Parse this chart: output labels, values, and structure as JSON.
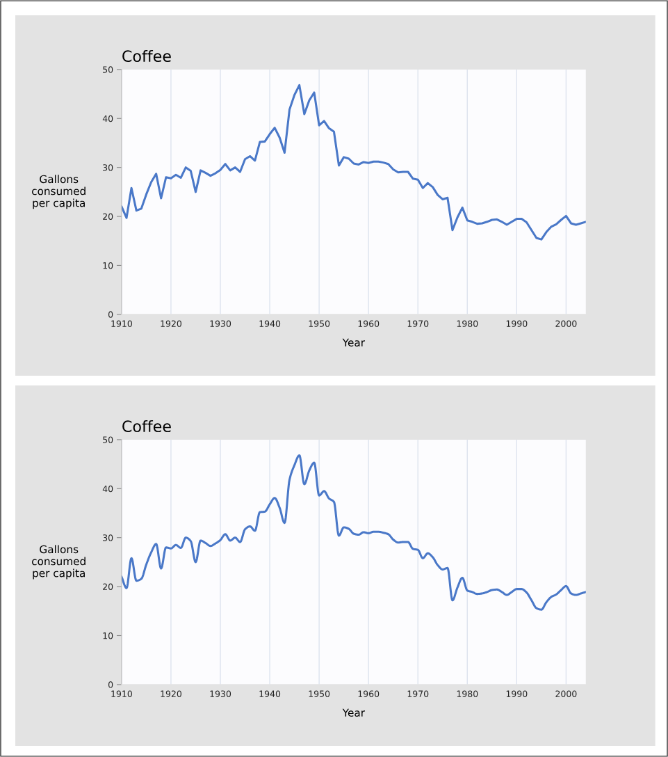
{
  "chart_data": [
    {
      "type": "line",
      "title": "Coffee",
      "xlabel": "Year",
      "ylabel": "Gallons\nconsumed\nper capita",
      "x": [
        1910,
        1911,
        1912,
        1913,
        1914,
        1915,
        1916,
        1917,
        1918,
        1919,
        1920,
        1921,
        1922,
        1923,
        1924,
        1925,
        1926,
        1927,
        1928,
        1929,
        1930,
        1931,
        1932,
        1933,
        1934,
        1935,
        1936,
        1937,
        1938,
        1939,
        1940,
        1941,
        1942,
        1943,
        1944,
        1945,
        1946,
        1947,
        1948,
        1949,
        1950,
        1951,
        1952,
        1953,
        1954,
        1955,
        1956,
        1957,
        1958,
        1959,
        1960,
        1961,
        1962,
        1963,
        1964,
        1965,
        1966,
        1967,
        1968,
        1969,
        1970,
        1971,
        1972,
        1973,
        1974,
        1975,
        1976,
        1977,
        1978,
        1979,
        1980,
        1981,
        1982,
        1983,
        1984,
        1985,
        1986,
        1987,
        1988,
        1989,
        1990,
        1991,
        1992,
        1993,
        1994,
        1995,
        1996,
        1997,
        1998,
        1999,
        2000,
        2001,
        2002,
        2003,
        2004
      ],
      "series": [
        {
          "color": "#4a78c8",
          "values": [
            22,
            19.7,
            25.8,
            21.2,
            21.6,
            24.5,
            27,
            28.7,
            23.7,
            28,
            27.8,
            28.5,
            27.9,
            30,
            29.3,
            25,
            29.4,
            28.9,
            28.3,
            28.8,
            29.5,
            30.7,
            29.4,
            30,
            29.1,
            31.7,
            32.3,
            31.4,
            35.2,
            35.3,
            36.8,
            38.1,
            36.1,
            33,
            41.8,
            44.8,
            46.8,
            40.9,
            43.7,
            45.3,
            38.6,
            39.5,
            38,
            37.3,
            30.4,
            32.1,
            31.8,
            30.8,
            30.6,
            31.1,
            30.9,
            31.2,
            31.2,
            31,
            30.7,
            29.6,
            29,
            29.1,
            29.1,
            27.7,
            27.5,
            25.8,
            26.8,
            26,
            24.4,
            23.5,
            23.8,
            17.2,
            19.8,
            21.8,
            19.2,
            18.9,
            18.5,
            18.6,
            18.9,
            19.3,
            19.4,
            18.9,
            18.3,
            18.9,
            19.5,
            19.5,
            18.8,
            17.2,
            15.6,
            15.3,
            16.8,
            17.9,
            18.4,
            19.3,
            20.1,
            18.6,
            18.3,
            18.6,
            18.9
          ]
        }
      ],
      "xlim": [
        1910,
        2004
      ],
      "xticks": [
        1910,
        1920,
        1930,
        1940,
        1950,
        1960,
        1970,
        1980,
        1990,
        2000
      ],
      "ylim": [
        0,
        50
      ],
      "yticks": [
        0,
        10,
        20,
        30,
        40,
        50
      ],
      "grid": "x"
    },
    {
      "type": "line",
      "title": "Coffee",
      "xlabel": "Year",
      "ylabel": "Gallons\nconsumed\nper capita",
      "x": [
        1910,
        1911,
        1912,
        1913,
        1914,
        1915,
        1916,
        1917,
        1918,
        1919,
        1920,
        1921,
        1922,
        1923,
        1924,
        1925,
        1926,
        1927,
        1928,
        1929,
        1930,
        1931,
        1932,
        1933,
        1934,
        1935,
        1936,
        1937,
        1938,
        1939,
        1940,
        1941,
        1942,
        1943,
        1944,
        1945,
        1946,
        1947,
        1948,
        1949,
        1950,
        1951,
        1952,
        1953,
        1954,
        1955,
        1956,
        1957,
        1958,
        1959,
        1960,
        1961,
        1962,
        1963,
        1964,
        1965,
        1966,
        1967,
        1968,
        1969,
        1970,
        1971,
        1972,
        1973,
        1974,
        1975,
        1976,
        1977,
        1978,
        1979,
        1980,
        1981,
        1982,
        1983,
        1984,
        1985,
        1986,
        1987,
        1988,
        1989,
        1990,
        1991,
        1992,
        1993,
        1994,
        1995,
        1996,
        1997,
        1998,
        1999,
        2000,
        2001,
        2002,
        2003,
        2004
      ],
      "series": [
        {
          "color": "#4a78c8",
          "values": [
            22,
            19.7,
            25.8,
            21.2,
            21.6,
            24.5,
            27,
            28.7,
            23.7,
            28,
            27.8,
            28.5,
            27.9,
            30,
            29.3,
            25,
            29.4,
            28.9,
            28.3,
            28.8,
            29.5,
            30.7,
            29.4,
            30,
            29.1,
            31.7,
            32.3,
            31.4,
            35.2,
            35.3,
            36.8,
            38.1,
            36.1,
            33,
            41.8,
            44.8,
            46.8,
            40.9,
            43.7,
            45.3,
            38.6,
            39.5,
            38,
            37.3,
            30.4,
            32.1,
            31.8,
            30.8,
            30.6,
            31.1,
            30.9,
            31.2,
            31.2,
            31,
            30.7,
            29.6,
            29,
            29.1,
            29.1,
            27.7,
            27.5,
            25.8,
            26.8,
            26,
            24.4,
            23.5,
            23.8,
            17.2,
            19.8,
            21.8,
            19.2,
            18.9,
            18.5,
            18.6,
            18.9,
            19.3,
            19.4,
            18.9,
            18.3,
            18.9,
            19.5,
            19.5,
            18.8,
            17.2,
            15.6,
            15.3,
            16.8,
            17.9,
            18.4,
            19.3,
            20.1,
            18.6,
            18.3,
            18.6,
            18.9
          ]
        }
      ],
      "xlim": [
        1910,
        2004
      ],
      "xticks": [
        1910,
        1920,
        1930,
        1940,
        1950,
        1960,
        1970,
        1980,
        1990,
        2000
      ],
      "ylim": [
        0,
        50
      ],
      "yticks": [
        0,
        10,
        20,
        30,
        40,
        50
      ],
      "grid": "x"
    }
  ]
}
